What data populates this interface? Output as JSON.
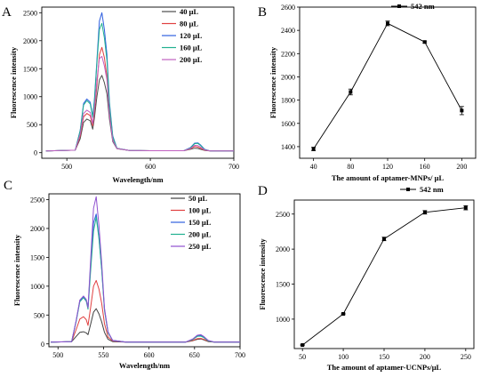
{
  "chart_data": [
    {
      "panel_label": "A",
      "type": "line",
      "xlabel": "Wavelength/nm",
      "ylabel": "Fluorescence intensity",
      "xlim": [
        470,
        700
      ],
      "ylim": [
        -100,
        2600
      ],
      "xticks": [
        500,
        600,
        700
      ],
      "yticks": [
        0,
        500,
        1000,
        1500,
        2000,
        2500
      ],
      "legend_position": "top-right",
      "series": [
        {
          "name": "40 μL",
          "color": "#4d4d4d",
          "x": [
            475,
            510,
            516,
            520,
            524,
            528,
            531,
            533,
            536,
            539,
            542,
            545,
            548,
            551,
            555,
            560,
            575,
            600,
            640,
            648,
            653,
            657,
            660,
            665,
            672,
            700
          ],
          "y": [
            30,
            45,
            250,
            540,
            600,
            570,
            420,
            620,
            1000,
            1300,
            1380,
            1250,
            1050,
            600,
            200,
            70,
            40,
            35,
            35,
            60,
            80,
            75,
            60,
            40,
            30,
            30
          ]
        },
        {
          "name": "80 μL",
          "color": "#e04040",
          "x": [
            475,
            510,
            516,
            520,
            524,
            528,
            531,
            533,
            536,
            539,
            542,
            545,
            548,
            551,
            555,
            560,
            575,
            600,
            640,
            648,
            653,
            657,
            660,
            665,
            672,
            700
          ],
          "y": [
            30,
            45,
            300,
            640,
            700,
            660,
            480,
            720,
            1200,
            1750,
            1880,
            1700,
            1350,
            700,
            230,
            75,
            40,
            35,
            35,
            70,
            110,
            100,
            80,
            45,
            30,
            30
          ]
        },
        {
          "name": "120 μL",
          "color": "#3060e0",
          "x": [
            475,
            510,
            516,
            520,
            524,
            528,
            531,
            533,
            536,
            539,
            542,
            545,
            548,
            551,
            555,
            560,
            575,
            600,
            640,
            648,
            653,
            657,
            660,
            665,
            672,
            700
          ],
          "y": [
            30,
            45,
            400,
            880,
            960,
            900,
            650,
            950,
            1650,
            2350,
            2500,
            2200,
            1750,
            900,
            300,
            80,
            40,
            35,
            35,
            90,
            170,
            175,
            140,
            60,
            30,
            30
          ]
        },
        {
          "name": "160 μL",
          "color": "#20b090",
          "x": [
            475,
            510,
            516,
            520,
            524,
            528,
            531,
            533,
            536,
            539,
            542,
            545,
            548,
            551,
            555,
            560,
            575,
            600,
            640,
            648,
            653,
            657,
            660,
            665,
            672,
            700
          ],
          "y": [
            30,
            45,
            390,
            850,
            930,
            870,
            630,
            920,
            1600,
            2200,
            2310,
            2050,
            1650,
            850,
            280,
            80,
            40,
            35,
            35,
            85,
            160,
            165,
            130,
            55,
            30,
            30
          ]
        },
        {
          "name": "200 μL",
          "color": "#c060c0",
          "x": [
            475,
            510,
            516,
            520,
            524,
            528,
            531,
            533,
            536,
            539,
            542,
            545,
            548,
            551,
            555,
            560,
            575,
            600,
            640,
            648,
            653,
            657,
            660,
            665,
            672,
            700
          ],
          "y": [
            30,
            45,
            330,
            700,
            760,
            720,
            520,
            790,
            1300,
            1680,
            1720,
            1550,
            1300,
            680,
            220,
            75,
            40,
            35,
            35,
            75,
            130,
            125,
            100,
            50,
            30,
            30
          ]
        }
      ]
    },
    {
      "panel_label": "B",
      "type": "line",
      "xlabel": "The amount of aptamer-MNPs/ μL",
      "ylabel": "Fluorescence intensity",
      "xlim": [
        25,
        215
      ],
      "ylim": [
        1300,
        2600
      ],
      "xticks": [
        40,
        80,
        120,
        160,
        200
      ],
      "yticks": [
        1400,
        1600,
        1800,
        2000,
        2200,
        2400,
        2600
      ],
      "legend_position": "top-right",
      "series": [
        {
          "name": "542 nm",
          "color": "#000000",
          "x": [
            40,
            80,
            120,
            160,
            200
          ],
          "y": [
            1380,
            1870,
            2460,
            2300,
            1710
          ],
          "err": [
            15,
            25,
            20,
            8,
            35
          ]
        }
      ]
    },
    {
      "panel_label": "C",
      "type": "line",
      "xlabel": "Wavelength/nm",
      "ylabel": "Fluorescence intensity",
      "xlim": [
        490,
        700
      ],
      "ylim": [
        -50,
        2600
      ],
      "xticks": [
        500,
        550,
        600,
        650,
        700
      ],
      "yticks": [
        0,
        500,
        1000,
        1500,
        2000,
        2500
      ],
      "legend_position": "top-right",
      "series": [
        {
          "name": "50 μL",
          "color": "#404040",
          "x": [
            492,
            515,
            520,
            524,
            528,
            531,
            533,
            536,
            539,
            542,
            545,
            548,
            551,
            555,
            560,
            575,
            600,
            640,
            648,
            653,
            657,
            660,
            665,
            672,
            700
          ],
          "y": [
            30,
            40,
            130,
            200,
            210,
            190,
            160,
            350,
            550,
            610,
            520,
            380,
            200,
            80,
            40,
            30,
            30,
            30,
            55,
            80,
            85,
            70,
            40,
            30,
            30
          ]
        },
        {
          "name": "100 μL",
          "color": "#e04040",
          "x": [
            492,
            515,
            520,
            524,
            528,
            531,
            533,
            536,
            539,
            542,
            545,
            548,
            551,
            555,
            560,
            575,
            600,
            640,
            648,
            653,
            657,
            660,
            665,
            672,
            700
          ],
          "y": [
            30,
            40,
            250,
            430,
            470,
            420,
            320,
            650,
            1000,
            1100,
            950,
            700,
            350,
            120,
            50,
            30,
            30,
            30,
            60,
            90,
            95,
            80,
            45,
            30,
            30
          ]
        },
        {
          "name": "150 μL",
          "color": "#3060e0",
          "x": [
            492,
            515,
            520,
            524,
            528,
            531,
            533,
            536,
            539,
            542,
            545,
            548,
            551,
            555,
            560,
            575,
            600,
            640,
            648,
            653,
            657,
            660,
            665,
            672,
            700
          ],
          "y": [
            30,
            40,
            400,
            750,
            820,
            760,
            620,
            1400,
            2100,
            2250,
            1850,
            1300,
            600,
            200,
            60,
            30,
            30,
            30,
            80,
            140,
            150,
            120,
            55,
            30,
            30
          ]
        },
        {
          "name": "200 μL",
          "color": "#20b090",
          "x": [
            492,
            515,
            520,
            524,
            528,
            531,
            533,
            536,
            539,
            542,
            545,
            548,
            551,
            555,
            560,
            575,
            600,
            640,
            648,
            653,
            657,
            660,
            665,
            672,
            700
          ],
          "y": [
            30,
            40,
            390,
            730,
            800,
            740,
            600,
            1300,
            1950,
            2200,
            1820,
            1280,
            580,
            190,
            60,
            30,
            30,
            30,
            75,
            130,
            135,
            110,
            50,
            30,
            30
          ]
        },
        {
          "name": "250 μL",
          "color": "#9050d0",
          "x": [
            492,
            515,
            520,
            524,
            528,
            531,
            533,
            536,
            539,
            542,
            545,
            548,
            551,
            555,
            560,
            575,
            600,
            640,
            648,
            653,
            657,
            660,
            665,
            672,
            700
          ],
          "y": [
            30,
            40,
            410,
            760,
            830,
            770,
            630,
            1500,
            2350,
            2550,
            2050,
            1400,
            620,
            210,
            60,
            30,
            30,
            30,
            85,
            150,
            160,
            130,
            60,
            30,
            30
          ]
        }
      ]
    },
    {
      "panel_label": "D",
      "type": "line",
      "xlabel": "The amount of aptamer-UCNPs/μL",
      "ylabel": "Fluorescence intensity",
      "xlim": [
        40,
        260
      ],
      "ylim": [
        580,
        2700
      ],
      "xticks": [
        50,
        100,
        150,
        200,
        250
      ],
      "yticks": [
        1000,
        1500,
        2000,
        2500
      ],
      "legend_position": "top-right",
      "series": [
        {
          "name": "542 nm",
          "color": "#000000",
          "x": [
            50,
            100,
            150,
            200,
            250
          ],
          "y": [
            630,
            1075,
            2145,
            2525,
            2590
          ],
          "err": [
            5,
            10,
            25,
            25,
            30
          ]
        }
      ]
    }
  ]
}
